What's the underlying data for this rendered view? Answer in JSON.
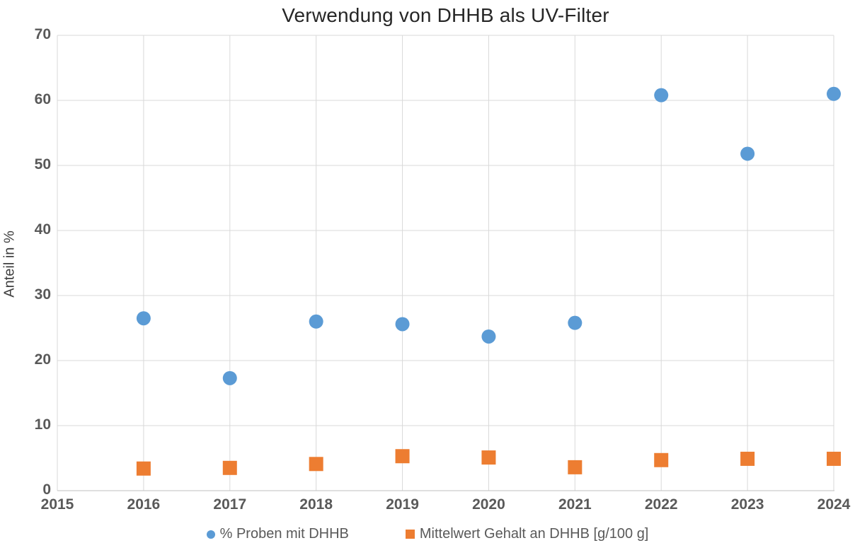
{
  "chart_data": {
    "type": "scatter",
    "title": "Verwendung von DHHB als UV-Filter",
    "xlabel": "",
    "ylabel": "Anteil in %",
    "xlim": [
      2015,
      2024
    ],
    "ylim": [
      0,
      70
    ],
    "x_ticks": [
      2015,
      2016,
      2017,
      2018,
      2019,
      2020,
      2021,
      2022,
      2023,
      2024
    ],
    "y_ticks": [
      0,
      10,
      20,
      30,
      40,
      50,
      60,
      70
    ],
    "grid": true,
    "legend_position": "bottom",
    "categories": [
      2016,
      2017,
      2018,
      2019,
      2020,
      2021,
      2022,
      2023,
      2024
    ],
    "series": [
      {
        "name": "% Proben mit DHHB",
        "marker": "circle",
        "color": "#5B9BD5",
        "values": [
          26.5,
          17.3,
          26.0,
          25.6,
          23.7,
          25.8,
          60.8,
          51.8,
          61.0
        ]
      },
      {
        "name": "Mittelwert Gehalt an DHHB [g/100 g]",
        "marker": "square",
        "color": "#ED7D31",
        "values": [
          3.4,
          3.5,
          4.1,
          5.3,
          5.1,
          3.6,
          4.7,
          4.9,
          4.9
        ]
      }
    ],
    "colors": {
      "gridline": "#D9D9D9",
      "axis_line": "#BFBFBF",
      "tick_text": "#595959",
      "title_text": "#262626",
      "series1": "#5B9BD5",
      "series2": "#ED7D31"
    }
  }
}
